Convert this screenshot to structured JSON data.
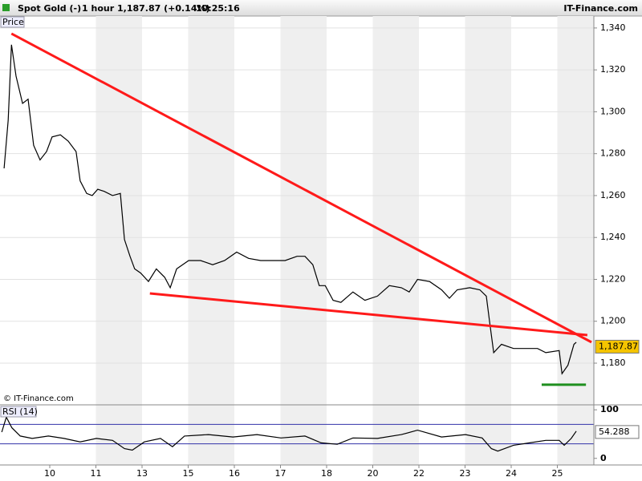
{
  "header": {
    "instrument": "Spot Gold (-)",
    "interval": "1 hour",
    "quote": "1,187.87 (+0.14%)",
    "time": "10:25:16",
    "brand": "IT-Finance.com"
  },
  "watermark": "© IT-Finance.com",
  "chart_data": [
    {
      "type": "line",
      "title": "Price",
      "color": "#000000",
      "x": [
        -0.99,
        -0.9,
        -0.83,
        -0.73,
        -0.59,
        -0.47,
        -0.35,
        -0.21,
        -0.07,
        0.05,
        0.23,
        0.4,
        0.57,
        0.66,
        0.8,
        0.92,
        1.04,
        1.18,
        1.36,
        1.53,
        1.62,
        1.74,
        1.84,
        1.97,
        2.14,
        2.31,
        2.49,
        2.61,
        2.75,
        3.01,
        3.27,
        3.53,
        3.79,
        4.05,
        4.31,
        4.57,
        4.83,
        5.1,
        5.36,
        5.53,
        5.7,
        5.84,
        5.97,
        6.14,
        6.31,
        6.57,
        6.83,
        7.1,
        7.36,
        7.62,
        7.79,
        7.97,
        8.23,
        8.49,
        8.66,
        8.83,
        9.1,
        9.32,
        9.46,
        9.53,
        9.62,
        9.79,
        10.05,
        10.31,
        10.57,
        10.75,
        11.04,
        11.1,
        11.23,
        11.36,
        11.41
      ],
      "values": [
        1273,
        1296,
        1332,
        1317,
        1304,
        1306,
        1284,
        1277,
        1281,
        1288,
        1289,
        1286,
        1281,
        1267,
        1261,
        1260,
        1263,
        1262,
        1260,
        1261,
        1239,
        1231,
        1225,
        1223,
        1219,
        1225,
        1221,
        1216,
        1225,
        1229,
        1229,
        1227,
        1229,
        1233,
        1230,
        1229,
        1229,
        1229,
        1231,
        1231,
        1227,
        1217,
        1217,
        1210,
        1209,
        1214,
        1210,
        1212,
        1217,
        1216,
        1214,
        1220,
        1219,
        1215,
        1211,
        1215,
        1216,
        1215,
        1212,
        1200,
        1185,
        1189,
        1187,
        1187,
        1187,
        1185,
        1186,
        1175,
        1179,
        1189,
        1190
      ],
      "last": {
        "value": 1187.87,
        "label": "1,187.87"
      },
      "xlim": [
        -1.078,
        11.791
      ],
      "ylim": [
        1160.1,
        1345.7
      ],
      "xticks": [
        {
          "value": 0,
          "label": "10"
        },
        {
          "value": 1,
          "label": "11"
        },
        {
          "value": 2,
          "label": "13"
        },
        {
          "value": 3,
          "label": "15"
        },
        {
          "value": 4,
          "label": "16"
        },
        {
          "value": 5,
          "label": "17"
        },
        {
          "value": 6,
          "label": "18"
        },
        {
          "value": 7,
          "label": "20"
        },
        {
          "value": 8,
          "label": "22"
        },
        {
          "value": 9,
          "label": "23"
        },
        {
          "value": 10,
          "label": "24"
        },
        {
          "value": 11,
          "label": "25"
        }
      ],
      "yticks": [
        {
          "value": 1180,
          "label": "1,180"
        },
        {
          "value": 1200,
          "label": "1,200"
        },
        {
          "value": 1220,
          "label": "1,220"
        },
        {
          "value": 1240,
          "label": "1,240"
        },
        {
          "value": 1260,
          "label": "1,260"
        },
        {
          "value": 1280,
          "label": "1,280"
        },
        {
          "value": 1300,
          "label": "1,300"
        },
        {
          "value": 1320,
          "label": "1,320"
        },
        {
          "value": 1340,
          "label": "1,340"
        }
      ],
      "grid": true,
      "trendlines": [
        {
          "x": [
            -0.83,
            11.74
          ],
          "y": [
            1337.3,
            1190.0
          ],
          "color": "#ff1a1a"
        },
        {
          "x": [
            2.17,
            11.65
          ],
          "y": [
            1213.3,
            1193.4
          ],
          "color": "#ff1a1a"
        },
        {
          "x": [
            10.66,
            11.62
          ],
          "y": [
            1169.7,
            1169.7
          ],
          "color": "#1f8f1f"
        }
      ]
    },
    {
      "type": "line",
      "title": "RSI (14)",
      "color": "#000000",
      "x": [
        -1.04,
        -0.94,
        -0.82,
        -0.64,
        -0.38,
        -0.03,
        0.31,
        0.66,
        1.01,
        1.36,
        1.62,
        1.79,
        2.05,
        2.4,
        2.66,
        2.92,
        3.44,
        3.97,
        4.49,
        5.01,
        5.53,
        5.88,
        6.23,
        6.57,
        7.1,
        7.62,
        7.97,
        8.49,
        9.01,
        9.37,
        9.57,
        9.71,
        10.05,
        10.4,
        10.75,
        11.04,
        11.15,
        11.3,
        11.41
      ],
      "values": [
        54,
        85,
        63,
        46,
        41,
        46,
        41,
        34,
        41,
        37,
        20,
        17,
        34,
        41,
        24,
        46,
        49,
        44,
        49,
        42,
        46,
        32,
        29,
        42,
        41,
        49,
        58,
        44,
        49,
        42,
        20,
        15,
        27,
        32,
        37,
        37,
        27,
        41,
        56
      ],
      "last": {
        "value": 54.288,
        "label": "54.288"
      },
      "levels": [
        30,
        70
      ],
      "level_color": "#3333aa",
      "xlim": [
        -1.078,
        11.791
      ],
      "ylim": [
        -13.6,
        110.2
      ],
      "yticks": [
        0,
        100
      ]
    }
  ]
}
